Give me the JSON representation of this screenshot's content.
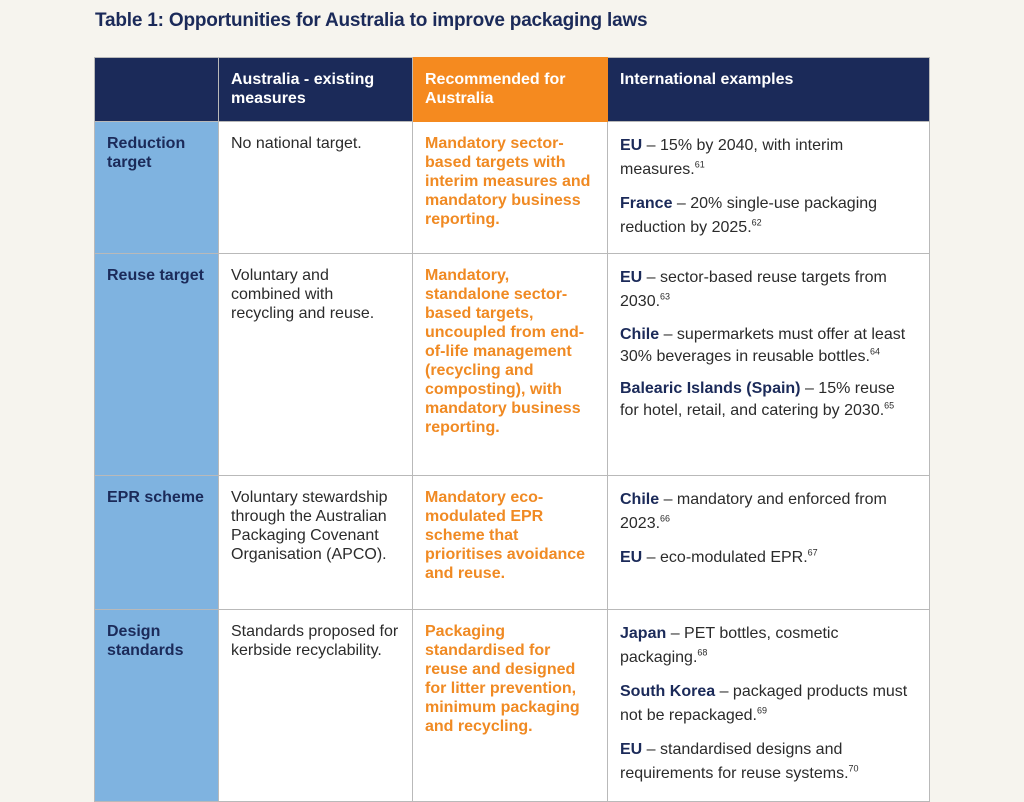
{
  "title": "Table 1: Opportunities for Australia to improve packaging laws",
  "headers": {
    "existing": "Australia - existing measures",
    "recommended": "Recommended for Australia",
    "international": "International examples"
  },
  "rows": [
    {
      "label": "Reduction target",
      "existing": "No national target.",
      "recommended": "Mandatory sector-based targets with interim measures and mandatory business reporting.",
      "examples": [
        {
          "country": "EU",
          "text": " – 15% by 2040, with interim measures.",
          "ref": "61"
        },
        {
          "country": "France",
          "text": " – 20% single-use packaging reduction by 2025.",
          "ref": "62"
        }
      ]
    },
    {
      "label": "Reuse target",
      "existing": "Voluntary and combined with recycling and reuse.",
      "recommended": "Mandatory, standalone sector-based targets, uncoupled from end-of-life management (recycling and composting), with mandatory business reporting.",
      "examples": [
        {
          "country": "EU",
          "text": " – sector-based reuse targets from 2030.",
          "ref": "63"
        },
        {
          "country": "Chile",
          "text": " – supermarkets must offer at least 30% beverages in reusable bottles.",
          "ref": "64"
        },
        {
          "country": "Balearic Islands (Spain)",
          "text": " – 15% reuse for hotel, retail, and catering by 2030.",
          "ref": "65"
        }
      ]
    },
    {
      "label": "EPR scheme",
      "existing": "Voluntary stewardship through the Australian Packaging Covenant Organisation (APCO).",
      "recommended": "Mandatory eco-modulated EPR scheme that prioritises avoidance and reuse.",
      "examples": [
        {
          "country": "Chile",
          "text": " – mandatory and enforced from 2023.",
          "ref": "66"
        },
        {
          "country": "EU",
          "text": " – eco-modulated EPR.",
          "ref": "67"
        }
      ]
    },
    {
      "label": "Design standards",
      "existing": "Standards proposed for kerbside recyclability.",
      "recommended": "Packaging standardised for reuse and designed for litter prevention, minimum packaging and recycling.",
      "examples": [
        {
          "country": "Japan",
          "text": " – PET bottles, cosmetic packaging.",
          "ref": "68"
        },
        {
          "country": "South Korea",
          "text": " – packaged products must not be repackaged.",
          "ref": "69"
        },
        {
          "country": "EU",
          "text": " – standardised designs and requirements for reuse systems.",
          "ref": "70"
        }
      ]
    }
  ]
}
